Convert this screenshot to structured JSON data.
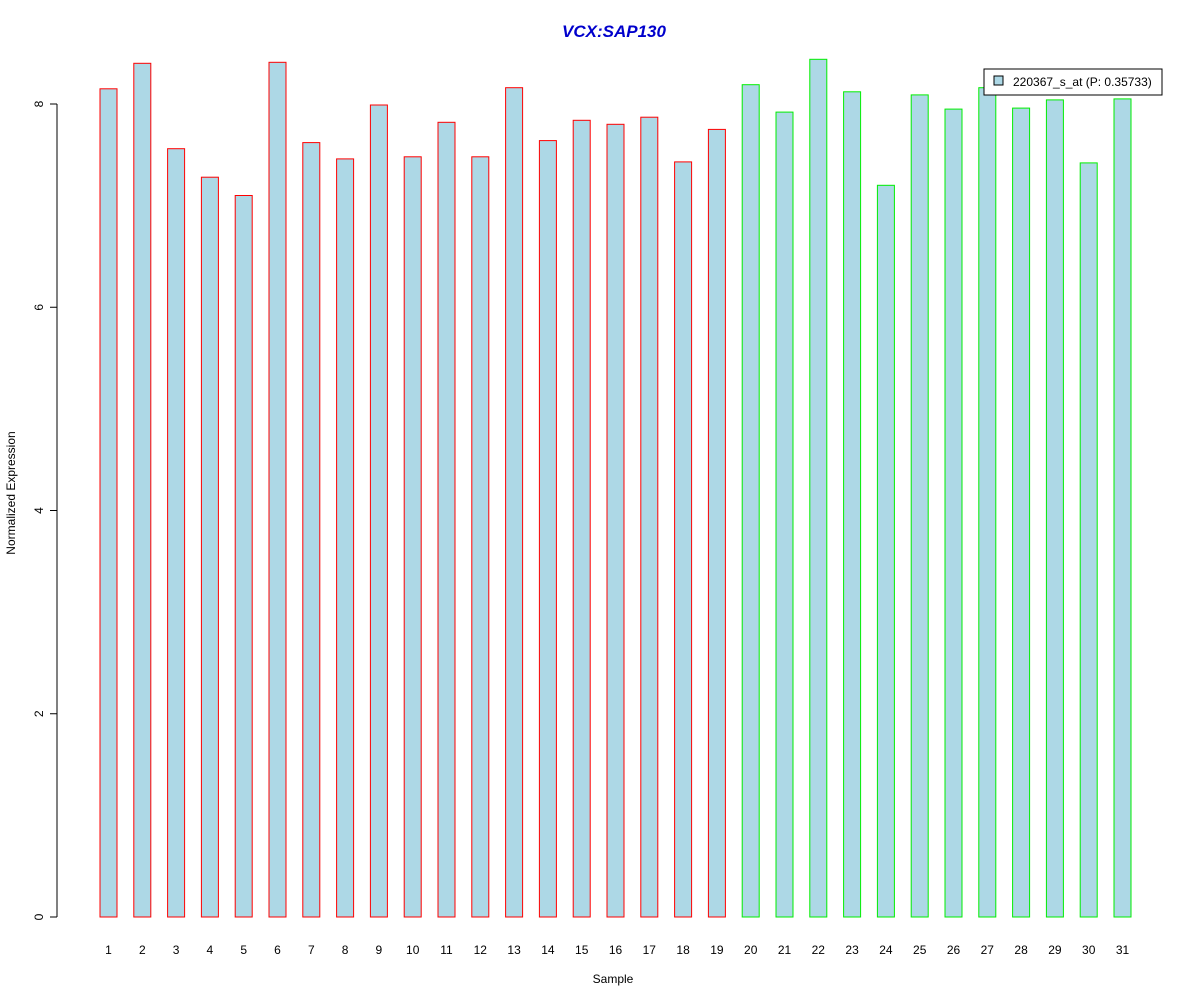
{
  "chart_data": {
    "type": "bar",
    "title": "VCX:SAP130",
    "xlabel": "Sample",
    "ylabel": "Normalized Expression",
    "ylim": [
      0,
      8.45
    ],
    "y_ticks": [
      0,
      2,
      4,
      6,
      8
    ],
    "grid": false,
    "legend_position": "top-right",
    "legend": {
      "label": "220367_s_at (P: 0.35733)",
      "swatch_color": "#add8e6"
    },
    "bar_fill": "#add8e6",
    "title_color": "#0000cc",
    "group_colors": {
      "group1": "#ff0000",
      "group2": "#00ee00"
    },
    "categories": [
      "1",
      "2",
      "3",
      "4",
      "5",
      "6",
      "7",
      "8",
      "9",
      "10",
      "11",
      "12",
      "13",
      "14",
      "15",
      "16",
      "17",
      "18",
      "19",
      "20",
      "21",
      "22",
      "23",
      "24",
      "25",
      "26",
      "27",
      "28",
      "29",
      "30",
      "31"
    ],
    "groups": [
      "group1",
      "group1",
      "group1",
      "group1",
      "group1",
      "group1",
      "group1",
      "group1",
      "group1",
      "group1",
      "group1",
      "group1",
      "group1",
      "group1",
      "group1",
      "group1",
      "group1",
      "group1",
      "group1",
      "group2",
      "group2",
      "group2",
      "group2",
      "group2",
      "group2",
      "group2",
      "group2",
      "group2",
      "group2",
      "group2",
      "group2"
    ],
    "values": [
      8.15,
      8.4,
      7.56,
      7.28,
      7.1,
      8.41,
      7.62,
      7.46,
      7.99,
      7.48,
      7.82,
      7.48,
      8.16,
      7.64,
      7.84,
      7.8,
      7.87,
      7.43,
      7.75,
      8.19,
      7.92,
      8.44,
      8.12,
      7.2,
      8.09,
      7.95,
      8.16,
      7.96,
      8.04,
      7.42,
      8.05
    ]
  }
}
